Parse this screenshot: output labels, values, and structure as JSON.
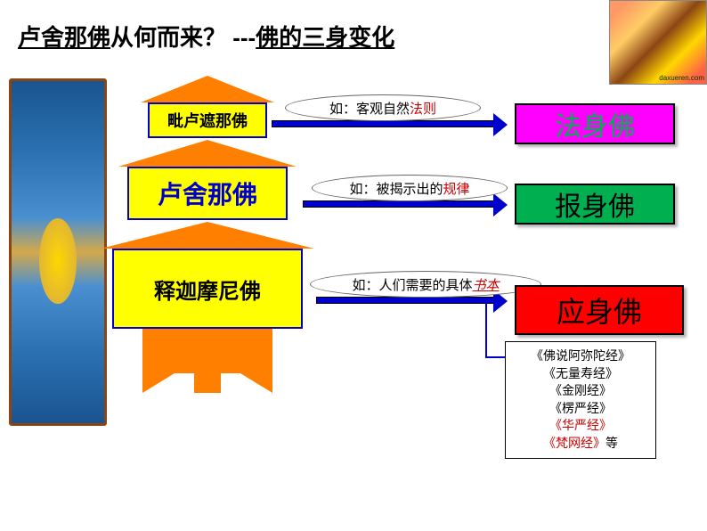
{
  "title": {
    "part1": "卢舍那佛",
    "part2": "从何而来？ ---",
    "part3": "佛的三身变化"
  },
  "tower": {
    "level1": "毗卢遮那佛",
    "level2": "卢舍那佛",
    "level3": "释迦摩尼佛"
  },
  "annotations": {
    "a1_prefix": "如：客观自然",
    "a1_red": "法则",
    "a2_prefix": "如：被揭示出的",
    "a2_red": "规律",
    "a3_prefix": "如：人们需要的具体",
    "a3_red": "书本"
  },
  "results": {
    "r1": "法身佛",
    "r2": "报身佛",
    "r3": "应身佛"
  },
  "scriptures": {
    "s1": "《佛说阿弥陀经》",
    "s2": "《无量寿经》",
    "s3": "《金刚经》",
    "s4": "《楞严经》",
    "s5": "《华严经》",
    "s6_red": "《梵网经》",
    "s6_suffix": "等"
  },
  "colors": {
    "orange": "#ff7f00",
    "yellow": "#ffff00",
    "blue": "#0000cc",
    "magenta": "#ff00ff",
    "green": "#00b050",
    "red": "#ff0000",
    "text_red": "#cc0000"
  }
}
